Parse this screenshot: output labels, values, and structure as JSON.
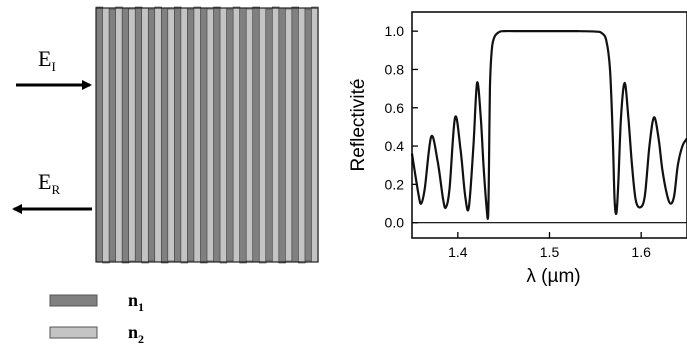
{
  "diagram": {
    "incident_label": {
      "main": "E",
      "sub": "I"
    },
    "reflected_label": {
      "main": "E",
      "sub": "R"
    },
    "legend": [
      {
        "main": "n",
        "sub": "1",
        "color": "#808080"
      },
      {
        "main": "n",
        "sub": "2",
        "color": "#c4c4c4"
      }
    ],
    "layer_colors": {
      "n1": "#808080",
      "n2": "#c4c4c4",
      "edge": "#3a3a3a"
    },
    "layer_count": 34
  },
  "chart_data": {
    "type": "line",
    "title": "",
    "xlabel": "λ (µm)",
    "ylabel": "Reflectivité",
    "xlim": [
      1.35,
      1.65
    ],
    "ylim": [
      -0.08,
      1.1
    ],
    "xticks": [
      1.4,
      1.5,
      1.6
    ],
    "yticks": [
      0.0,
      0.2,
      0.4,
      0.6,
      0.8,
      1.0
    ],
    "xtick_labels": [
      "1.4",
      "1.5",
      "1.6"
    ],
    "ytick_labels": [
      "0.0",
      "0.2",
      "0.4",
      "0.6",
      "0.8",
      "1.0"
    ],
    "grid": false,
    "series": [
      {
        "x": [
          1.35,
          1.357,
          1.36,
          1.364,
          1.371,
          1.378,
          1.384,
          1.387,
          1.391,
          1.397,
          1.403,
          1.408,
          1.412,
          1.417,
          1.421,
          1.425,
          1.428,
          1.431,
          1.433,
          1.434,
          1.435,
          1.437,
          1.44,
          1.445,
          1.45,
          1.47,
          1.5,
          1.53,
          1.55,
          1.557,
          1.562,
          1.566,
          1.569,
          1.571,
          1.573,
          1.575,
          1.578,
          1.582,
          1.586,
          1.59,
          1.594,
          1.599,
          1.604,
          1.609,
          1.614,
          1.619,
          1.623,
          1.628,
          1.632,
          1.636,
          1.64,
          1.645,
          1.65
        ],
        "y": [
          0.36,
          0.15,
          0.1,
          0.18,
          0.45,
          0.32,
          0.12,
          0.08,
          0.18,
          0.55,
          0.38,
          0.14,
          0.08,
          0.4,
          0.73,
          0.55,
          0.3,
          0.1,
          0.03,
          0.3,
          0.7,
          0.9,
          0.97,
          0.995,
          1.0,
          1.0,
          1.0,
          1.0,
          0.998,
          0.99,
          0.95,
          0.8,
          0.45,
          0.12,
          0.05,
          0.2,
          0.55,
          0.73,
          0.55,
          0.3,
          0.12,
          0.08,
          0.14,
          0.4,
          0.55,
          0.44,
          0.28,
          0.15,
          0.1,
          0.14,
          0.3,
          0.4,
          0.44
        ],
        "color": "#111111"
      }
    ],
    "reference_lines": [
      0.0
    ]
  }
}
